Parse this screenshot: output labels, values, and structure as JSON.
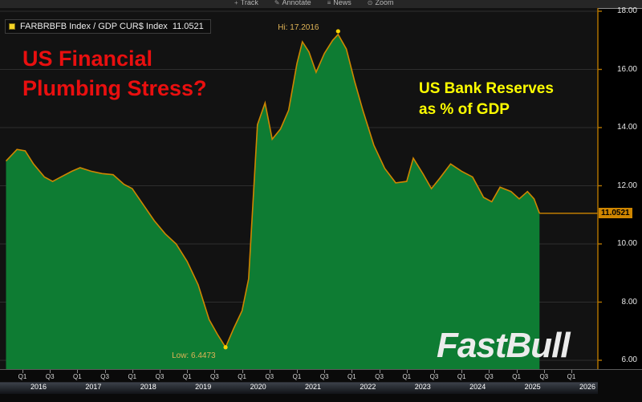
{
  "toolbar": {
    "items": [
      {
        "label": "Track",
        "icon": "+"
      },
      {
        "label": "Annotate",
        "icon": "✎"
      },
      {
        "label": "News",
        "icon": "≡"
      },
      {
        "label": "Zoom",
        "icon": "⊙"
      }
    ]
  },
  "legend": {
    "swatch_color": "#f5d327",
    "name": "FARBRBFB Index / GDP CUR$ Index",
    "value": "11.0521"
  },
  "annotations": {
    "title_line1": "US Financial",
    "title_line2": "Plumbing Stress?",
    "subtitle_line1": "US Bank Reserves",
    "subtitle_line2": "as % of GDP",
    "hi_label": "Hi: 17.2016",
    "low_label": "Low: 6.4473"
  },
  "watermark": "FastBull",
  "chart_data": {
    "type": "area",
    "title": "US Bank Reserves as % of GDP",
    "series_name": "FARBRBFB Index / GDP CUR$ Index",
    "unit": "percent of GDP",
    "ylim": [
      5.7,
      18.1
    ],
    "yticks": [
      18,
      16,
      14,
      12,
      10,
      8,
      6
    ],
    "ytick_labels": [
      "18.00",
      "16.00",
      "14.00",
      "12.00",
      "10.00",
      "8.00",
      "6.00"
    ],
    "years": [
      2016,
      2017,
      2018,
      2019,
      2020,
      2021,
      2022,
      2023,
      2024,
      2025,
      2026
    ],
    "quarter_tick_labels": [
      "Q1",
      "Q3"
    ],
    "grid": "horizontal-only",
    "legend_position": "top-left",
    "hi": {
      "t": 2021.75,
      "value": 17.2016
    },
    "low": {
      "t": 2019.7,
      "value": 6.4473
    },
    "last": {
      "t": 2025.42,
      "value": 11.0521,
      "label": "11.0521"
    },
    "colors": {
      "area_fill": "#0e7c33",
      "line": "#cf8600",
      "grid": "#2e2e2e",
      "axis": "#b87800",
      "marker": "#ffd400",
      "badge_bg": "#cf8600",
      "badge_text": "#000000",
      "title_red": "#e90f0f",
      "label_yellow": "#ffff00"
    },
    "points": [
      [
        2015.7,
        12.85
      ],
      [
        2015.9,
        13.25
      ],
      [
        2016.05,
        13.2
      ],
      [
        2016.2,
        12.75
      ],
      [
        2016.4,
        12.3
      ],
      [
        2016.55,
        12.15
      ],
      [
        2016.7,
        12.3
      ],
      [
        2016.9,
        12.5
      ],
      [
        2017.05,
        12.62
      ],
      [
        2017.25,
        12.5
      ],
      [
        2017.45,
        12.42
      ],
      [
        2017.65,
        12.38
      ],
      [
        2017.85,
        12.05
      ],
      [
        2018.0,
        11.9
      ],
      [
        2018.2,
        11.35
      ],
      [
        2018.4,
        10.8
      ],
      [
        2018.6,
        10.35
      ],
      [
        2018.8,
        10.0
      ],
      [
        2019.0,
        9.4
      ],
      [
        2019.2,
        8.6
      ],
      [
        2019.4,
        7.4
      ],
      [
        2019.55,
        6.9
      ],
      [
        2019.7,
        6.4473
      ],
      [
        2019.85,
        7.1
      ],
      [
        2020.0,
        7.7
      ],
      [
        2020.12,
        8.8
      ],
      [
        2020.28,
        14.1
      ],
      [
        2020.42,
        14.85
      ],
      [
        2020.55,
        13.6
      ],
      [
        2020.7,
        13.95
      ],
      [
        2020.85,
        14.6
      ],
      [
        2021.0,
        16.2
      ],
      [
        2021.1,
        16.95
      ],
      [
        2021.22,
        16.6
      ],
      [
        2021.35,
        15.9
      ],
      [
        2021.5,
        16.55
      ],
      [
        2021.65,
        17.0
      ],
      [
        2021.75,
        17.2016
      ],
      [
        2021.9,
        16.7
      ],
      [
        2022.05,
        15.6
      ],
      [
        2022.2,
        14.6
      ],
      [
        2022.4,
        13.4
      ],
      [
        2022.6,
        12.6
      ],
      [
        2022.8,
        12.1
      ],
      [
        2023.0,
        12.15
      ],
      [
        2023.12,
        12.95
      ],
      [
        2023.3,
        12.4
      ],
      [
        2023.45,
        11.9
      ],
      [
        2023.6,
        12.25
      ],
      [
        2023.8,
        12.75
      ],
      [
        2024.0,
        12.5
      ],
      [
        2024.2,
        12.3
      ],
      [
        2024.4,
        11.6
      ],
      [
        2024.55,
        11.45
      ],
      [
        2024.7,
        11.95
      ],
      [
        2024.9,
        11.8
      ],
      [
        2025.05,
        11.55
      ],
      [
        2025.2,
        11.8
      ],
      [
        2025.32,
        11.55
      ],
      [
        2025.42,
        11.0521
      ]
    ]
  }
}
